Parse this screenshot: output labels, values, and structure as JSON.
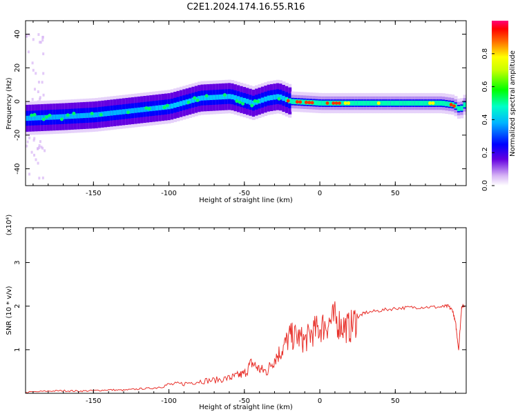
{
  "figure": {
    "title": "C2E1.2024.174.16.55.R16"
  },
  "chart_data": [
    {
      "type": "heatmap",
      "title": "C2E1.2024.174.16.55.R16",
      "xlabel": "Height of straight line (km)",
      "ylabel": "Frequency (Hz)",
      "xlim": [
        -195,
        97
      ],
      "ylim": [
        -50,
        48
      ],
      "x_ticks": [
        -150,
        -100,
        -50,
        0,
        50
      ],
      "x_tick_labels": [
        "-150",
        "-100",
        "-50",
        "0",
        "50"
      ],
      "y_ticks": [
        -40,
        -20,
        0,
        20,
        40
      ],
      "y_tick_labels": [
        "-40",
        "-20",
        "0",
        "20",
        "40"
      ],
      "grid": false,
      "colorbar": {
        "label": "Normalized spectral amplitude",
        "range": [
          0,
          1
        ],
        "ticks": [
          0.0,
          0.2,
          0.4,
          0.6,
          0.8
        ],
        "tick_labels": [
          "0.0",
          "0.2",
          "0.4",
          "0.6",
          "0.8"
        ],
        "colormap": [
          "#ffffff",
          "#c8a0f0",
          "#6400e0",
          "#0000ff",
          "#00c8ff",
          "#00ffc0",
          "#00ff00",
          "#a0ff00",
          "#ffff00",
          "#ff8000",
          "#ff0000",
          "#ff0080"
        ]
      },
      "ridge": {
        "description_points_x": [
          -195,
          -170,
          -150,
          -130,
          -110,
          -100,
          -80,
          -60,
          -45,
          -35,
          -28,
          -20,
          0,
          20,
          50,
          80,
          88,
          92,
          96
        ],
        "frequency_hz": [
          -10,
          -9,
          -8,
          -6,
          -4,
          -3,
          2,
          3,
          -1,
          2,
          3,
          0,
          -1,
          -1,
          -1,
          -1,
          -2,
          -5,
          -1
        ]
      }
    },
    {
      "type": "line",
      "xlabel": "Height of straight line (km)",
      "ylabel": "SNR (10 * v/v)",
      "y_multiplier_label": "(x10⁴)",
      "xlim": [
        -195,
        97
      ],
      "ylim": [
        0,
        3.8
      ],
      "x_ticks": [
        -150,
        -100,
        -50,
        0,
        50
      ],
      "x_tick_labels": [
        "-150",
        "-100",
        "-50",
        "0",
        "50"
      ],
      "y_ticks": [
        1,
        2,
        3
      ],
      "y_tick_labels": [
        "1",
        "2",
        "3"
      ],
      "grid": false,
      "series": [
        {
          "color": "#e8302a",
          "x": [
            -195,
            -180,
            -170,
            -160,
            -150,
            -140,
            -130,
            -120,
            -110,
            -100,
            -90,
            -80,
            -70,
            -60,
            -55,
            -50,
            -45,
            -40,
            -35,
            -30,
            -25,
            -20,
            -15,
            -10,
            -5,
            0,
            5,
            10,
            15,
            20,
            25,
            30,
            40,
            50,
            60,
            70,
            80,
            85,
            88,
            90,
            92,
            94,
            96
          ],
          "y": [
            0.02,
            0.05,
            0.06,
            0.05,
            0.06,
            0.08,
            0.07,
            0.1,
            0.12,
            0.2,
            0.22,
            0.28,
            0.3,
            0.35,
            0.4,
            0.45,
            0.7,
            0.55,
            0.5,
            0.8,
            1.0,
            1.3,
            1.3,
            1.2,
            1.4,
            1.5,
            1.6,
            1.7,
            1.55,
            1.5,
            1.75,
            1.85,
            1.9,
            1.95,
            1.97,
            1.98,
            1.98,
            2.0,
            1.9,
            1.6,
            1.0,
            2.0,
            2.0
          ]
        }
      ]
    }
  ]
}
